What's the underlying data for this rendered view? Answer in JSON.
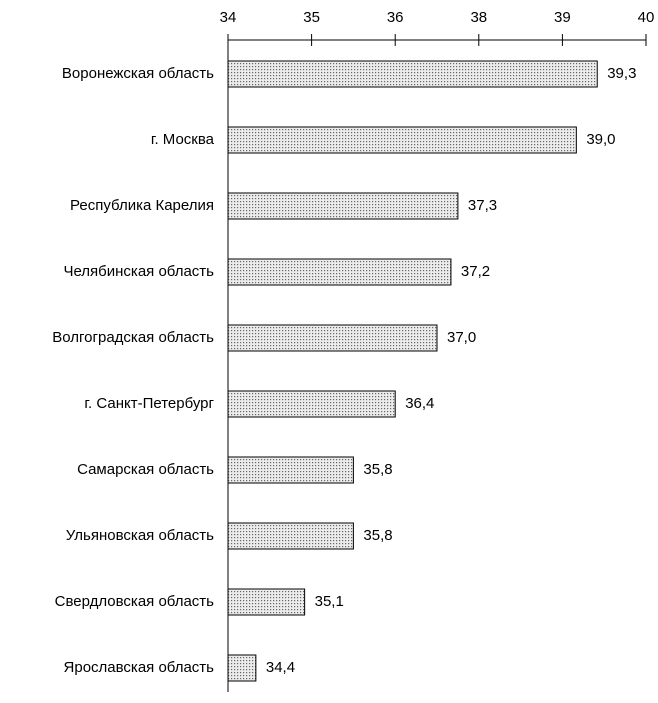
{
  "chart_data": {
    "type": "bar",
    "orientation": "horizontal",
    "categories": [
      "Воронежская область",
      "г. Москва",
      "Республика Карелия",
      "Челябинская область",
      "Волгоградская область",
      "г. Санкт-Петербург",
      "Самарская область",
      "Ульяновская область",
      "Свердловская область",
      "Ярославская область"
    ],
    "values": [
      39.3,
      39.0,
      37.3,
      37.2,
      37.0,
      36.4,
      35.8,
      35.8,
      35.1,
      34.4
    ],
    "value_labels": [
      "39,3",
      "39,0",
      "37,3",
      "37,2",
      "37,0",
      "36,4",
      "35,8",
      "35,8",
      "35,1",
      "34,4"
    ],
    "color": "#d9d9d9",
    "xlim": [
      34,
      40
    ],
    "xticks": [
      34,
      {
        "value": 35.2,
        "label": "35"
      },
      {
        "value": 36.4,
        "label": "36"
      },
      {
        "value": 37.6,
        "label": "38"
      },
      {
        "value": 38.8,
        "label": "39"
      },
      40
    ]
  }
}
